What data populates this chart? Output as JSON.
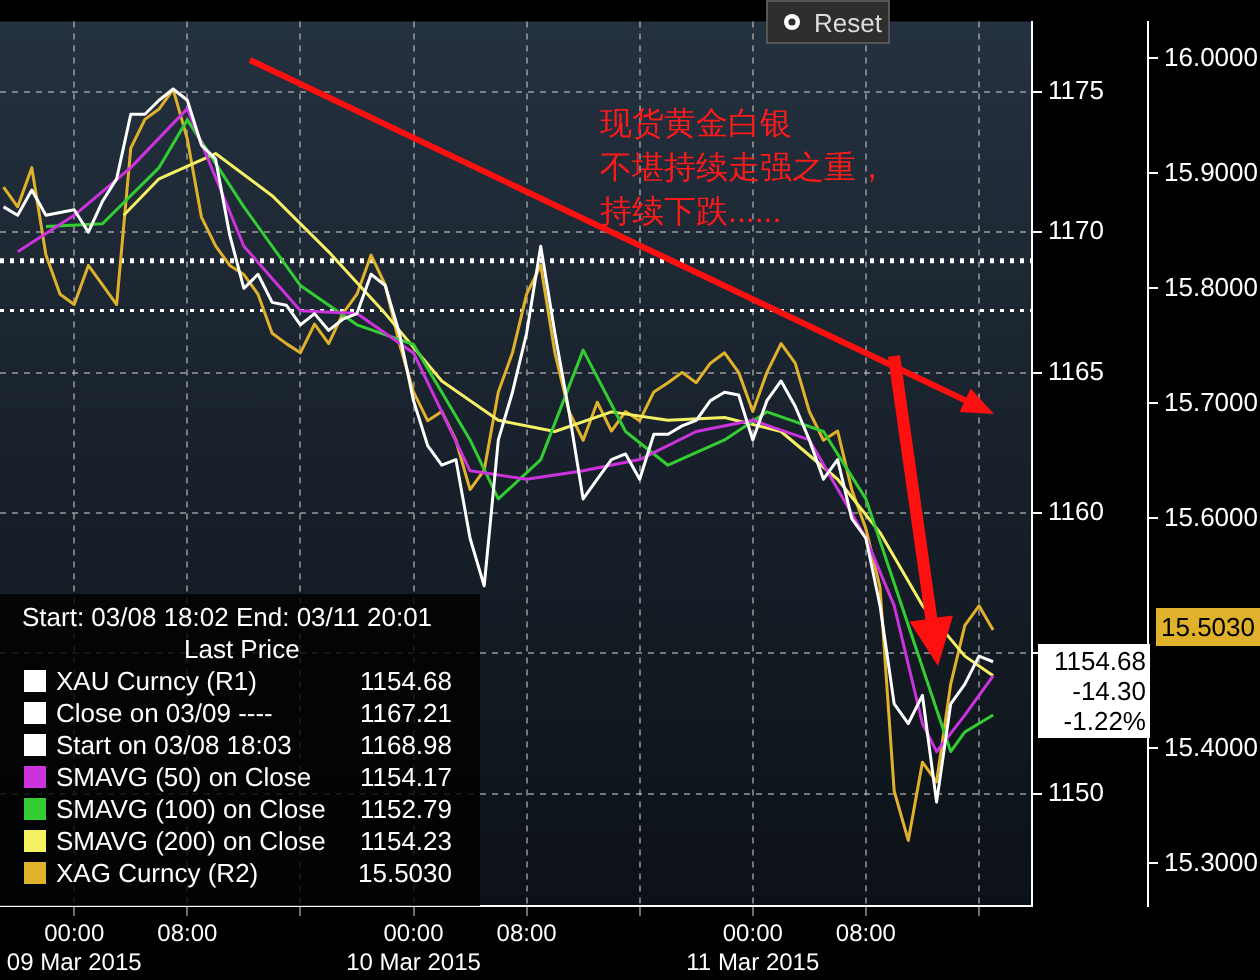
{
  "chart_data": {
    "type": "line",
    "x": [
      "2015-03-08T19:00",
      "2015-03-08T20:00",
      "2015-03-08T21:00",
      "2015-03-08T22:00",
      "2015-03-08T23:00",
      "2015-03-09T00:00",
      "2015-03-09T01:00",
      "2015-03-09T02:00",
      "2015-03-09T03:00",
      "2015-03-09T04:00",
      "2015-03-09T05:00",
      "2015-03-09T06:00",
      "2015-03-09T07:00",
      "2015-03-09T08:00",
      "2015-03-09T09:00",
      "2015-03-09T10:00",
      "2015-03-09T11:00",
      "2015-03-09T12:00",
      "2015-03-09T13:00",
      "2015-03-09T14:00",
      "2015-03-09T15:00",
      "2015-03-09T16:00",
      "2015-03-09T17:00",
      "2015-03-09T18:00",
      "2015-03-09T19:00",
      "2015-03-09T20:00",
      "2015-03-09T21:00",
      "2015-03-09T22:00",
      "2015-03-09T23:00",
      "2015-03-10T00:00",
      "2015-03-10T01:00",
      "2015-03-10T02:00",
      "2015-03-10T03:00",
      "2015-03-10T04:00",
      "2015-03-10T05:00",
      "2015-03-10T06:00",
      "2015-03-10T07:00",
      "2015-03-10T08:00",
      "2015-03-10T09:00",
      "2015-03-10T10:00",
      "2015-03-10T11:00",
      "2015-03-10T12:00",
      "2015-03-10T13:00",
      "2015-03-10T14:00",
      "2015-03-10T15:00",
      "2015-03-10T16:00",
      "2015-03-10T17:00",
      "2015-03-10T18:00",
      "2015-03-10T19:00",
      "2015-03-10T20:00",
      "2015-03-10T21:00",
      "2015-03-10T22:00",
      "2015-03-10T23:00",
      "2015-03-11T00:00",
      "2015-03-11T01:00",
      "2015-03-11T02:00",
      "2015-03-11T03:00",
      "2015-03-11T04:00",
      "2015-03-11T05:00",
      "2015-03-11T06:00",
      "2015-03-11T07:00",
      "2015-03-11T08:00",
      "2015-03-11T09:00",
      "2015-03-11T10:00",
      "2015-03-11T11:00",
      "2015-03-11T12:00",
      "2015-03-11T13:00",
      "2015-03-11T14:00",
      "2015-03-11T15:00",
      "2015-03-11T16:00",
      "2015-03-11T17:00"
    ],
    "series": [
      {
        "name": "XAU Curncy  (R1)",
        "color": "#ffffff",
        "values": [
          1170.9,
          1170.6,
          1171.5,
          1170.6,
          1170.7,
          1170.8,
          1170.0,
          1171.1,
          1171.9,
          1174.2,
          1174.2,
          1174.7,
          1175.1,
          1174.7,
          1173.1,
          1172.6,
          1169.9,
          1168.0,
          1168.5,
          1167.5,
          1167.4,
          1166.7,
          1167.1,
          1166.5,
          1166.9,
          1167.1,
          1168.5,
          1168.1,
          1166.4,
          1164.0,
          1162.4,
          1161.7,
          1161.9,
          1159.1,
          1157.4,
          1162.6,
          1164.3,
          1166.4,
          1169.5,
          1166.4,
          1163.6,
          1160.5,
          1161.2,
          1161.9,
          1162.1,
          1161.2,
          1162.8,
          1162.8,
          1163.1,
          1163.3,
          1164.0,
          1164.3,
          1164.2,
          1162.6,
          1164.0,
          1164.7,
          1163.8,
          1162.6,
          1161.2,
          1161.9,
          1159.8,
          1159.1,
          1156.7,
          1153.2,
          1152.5,
          1153.5,
          1149.7,
          1153.2,
          1153.9,
          1154.9,
          1154.7
        ]
      },
      {
        "name": "SMAVG (50) on Close",
        "color": "#cc33dd",
        "x": [
          "2015-03-08T20:00",
          "2015-03-09T00:00",
          "2015-03-09T04:00",
          "2015-03-09T08:00",
          "2015-03-09T12:00",
          "2015-03-09T16:00",
          "2015-03-09T20:00",
          "2015-03-10T00:00",
          "2015-03-10T04:00",
          "2015-03-10T08:00",
          "2015-03-10T12:00",
          "2015-03-10T16:00",
          "2015-03-10T20:00",
          "2015-03-11T00:00",
          "2015-03-11T04:00",
          "2015-03-11T08:00",
          "2015-03-11T10:00",
          "2015-03-11T12:00",
          "2015-03-11T13:00",
          "2015-03-11T15:00",
          "2015-03-11T17:00"
        ],
        "values": [
          1169.3,
          1170.6,
          1172.3,
          1174.4,
          1169.5,
          1167.2,
          1167.1,
          1165.7,
          1161.5,
          1161.2,
          1161.5,
          1161.9,
          1162.9,
          1163.3,
          1162.6,
          1159.1,
          1156.7,
          1152.5,
          1151.5,
          1152.8,
          1154.2
        ]
      },
      {
        "name": "SMAVG (100) on Close",
        "color": "#33cc33",
        "x": [
          "2015-03-08T22:00",
          "2015-03-09T02:00",
          "2015-03-09T06:00",
          "2015-03-09T08:00",
          "2015-03-09T12:00",
          "2015-03-09T16:00",
          "2015-03-09T20:00",
          "2015-03-10T00:00",
          "2015-03-10T04:00",
          "2015-03-10T06:00",
          "2015-03-10T09:00",
          "2015-03-10T12:00",
          "2015-03-10T15:00",
          "2015-03-10T18:00",
          "2015-03-10T22:00",
          "2015-03-11T01:00",
          "2015-03-11T05:00",
          "2015-03-11T08:00",
          "2015-03-11T11:00",
          "2015-03-11T14:00",
          "2015-03-11T15:00",
          "2015-03-11T17:00"
        ],
        "values": [
          1170.2,
          1170.3,
          1172.3,
          1174.0,
          1170.9,
          1168.1,
          1166.7,
          1166.0,
          1162.6,
          1160.5,
          1161.9,
          1165.8,
          1162.9,
          1161.7,
          1162.6,
          1163.6,
          1162.9,
          1160.5,
          1156.0,
          1151.5,
          1152.2,
          1152.8
        ]
      },
      {
        "name": "SMAVG (200) on Close",
        "color": "#f5f064",
        "x": [
          "2015-03-09T03:30",
          "2015-03-09T06:00",
          "2015-03-09T10:00",
          "2015-03-09T14:00",
          "2015-03-09T18:00",
          "2015-03-09T22:00",
          "2015-03-10T02:00",
          "2015-03-10T06:00",
          "2015-03-10T10:00",
          "2015-03-10T14:00",
          "2015-03-10T18:00",
          "2015-03-10T22:00",
          "2015-03-11T02:00",
          "2015-03-11T06:00",
          "2015-03-11T09:00",
          "2015-03-11T12:00",
          "2015-03-11T15:00",
          "2015-03-11T17:00"
        ],
        "values": [
          1170.6,
          1171.9,
          1172.8,
          1171.3,
          1169.3,
          1167.1,
          1164.7,
          1163.3,
          1162.9,
          1163.6,
          1163.3,
          1163.4,
          1162.9,
          1161.2,
          1159.3,
          1156.7,
          1154.9,
          1154.2
        ]
      },
      {
        "name": "XAG Curncy  (R2)",
        "color": "#e0b12a",
        "axis": "y2",
        "values": [
          15.888,
          15.871,
          15.905,
          15.829,
          15.795,
          15.786,
          15.82,
          15.803,
          15.786,
          15.922,
          15.947,
          15.956,
          15.973,
          15.93,
          15.862,
          15.837,
          15.82,
          15.812,
          15.795,
          15.761,
          15.752,
          15.744,
          15.769,
          15.752,
          15.778,
          15.795,
          15.829,
          15.803,
          15.752,
          15.71,
          15.685,
          15.693,
          15.668,
          15.625,
          15.642,
          15.71,
          15.744,
          15.795,
          15.82,
          15.744,
          15.693,
          15.668,
          15.701,
          15.676,
          15.693,
          15.685,
          15.71,
          15.718,
          15.727,
          15.718,
          15.735,
          15.744,
          15.727,
          15.693,
          15.727,
          15.752,
          15.735,
          15.693,
          15.668,
          15.676,
          15.625,
          15.591,
          15.54,
          15.363,
          15.32,
          15.388,
          15.371,
          15.456,
          15.507,
          15.524,
          15.503
        ]
      }
    ],
    "xlim": [
      "2015-03-08T18:45",
      "2015-03-11T19:45"
    ],
    "xticks": [
      {
        "value": "2015-03-09T00:00",
        "label": "00:00\n09 Mar 2015"
      },
      {
        "value": "2015-03-09T08:00",
        "label": "08:00"
      },
      {
        "value": "2015-03-09T16:00",
        "label": null
      },
      {
        "value": "2015-03-10T00:00",
        "label": "00:00\n10 Mar 2015"
      },
      {
        "value": "2015-03-10T08:00",
        "label": "08:00"
      },
      {
        "value": "2015-03-10T16:00",
        "label": null
      },
      {
        "value": "2015-03-11T00:00",
        "label": "00:00\n11 Mar 2015"
      },
      {
        "value": "2015-03-11T08:00",
        "label": "08:00"
      },
      {
        "value": "2015-03-11T16:00",
        "label": null
      }
    ],
    "ylim": [
      1146,
      1177.5
    ],
    "yticks": [
      1150,
      {
        "value": 1155,
        "label": null
      },
      1160,
      1165,
      1170,
      1175
    ],
    "y2lim": [
      15.263,
      16.032
    ],
    "y2ticks": [
      {
        "value": 15.3,
        "label": "15.3000"
      },
      {
        "value": 15.4,
        "label": "15.4000"
      },
      {
        "value": 15.6,
        "label": "15.6000"
      },
      {
        "value": 15.7,
        "label": "15.7000"
      },
      {
        "value": 15.8,
        "label": "15.8000"
      },
      {
        "value": 15.9,
        "label": "15.9000"
      },
      {
        "value": 16.0,
        "label": "16.0000"
      }
    ],
    "ref_lines": [
      {
        "axis": "y",
        "value": 1167.21,
        "color": "#ffffff",
        "line_style": "dotted"
      },
      {
        "axis": "y",
        "value": 1168.98,
        "color": "#ffffff",
        "line_style": "dotted"
      }
    ],
    "grid": true,
    "legend": "bottom left",
    "marker": "none",
    "line_style": "solid",
    "annotations": [
      "Start: 03/08 18:02 End: 03/11 20:01",
      "Last Price",
      "1154.68",
      "1167.21",
      "1168.98",
      "1154.17",
      "1152.79",
      "1154.23",
      "15.5030",
      "现货黄金白银",
      "不堪持续走强之重，",
      "持续下跌......",
      "Reset",
      "1154.68",
      "-14.30",
      "-1.22%",
      "15.5030",
      "Close on 03/09 ----",
      "Start on 03/08 18:03"
    ]
  }
}
